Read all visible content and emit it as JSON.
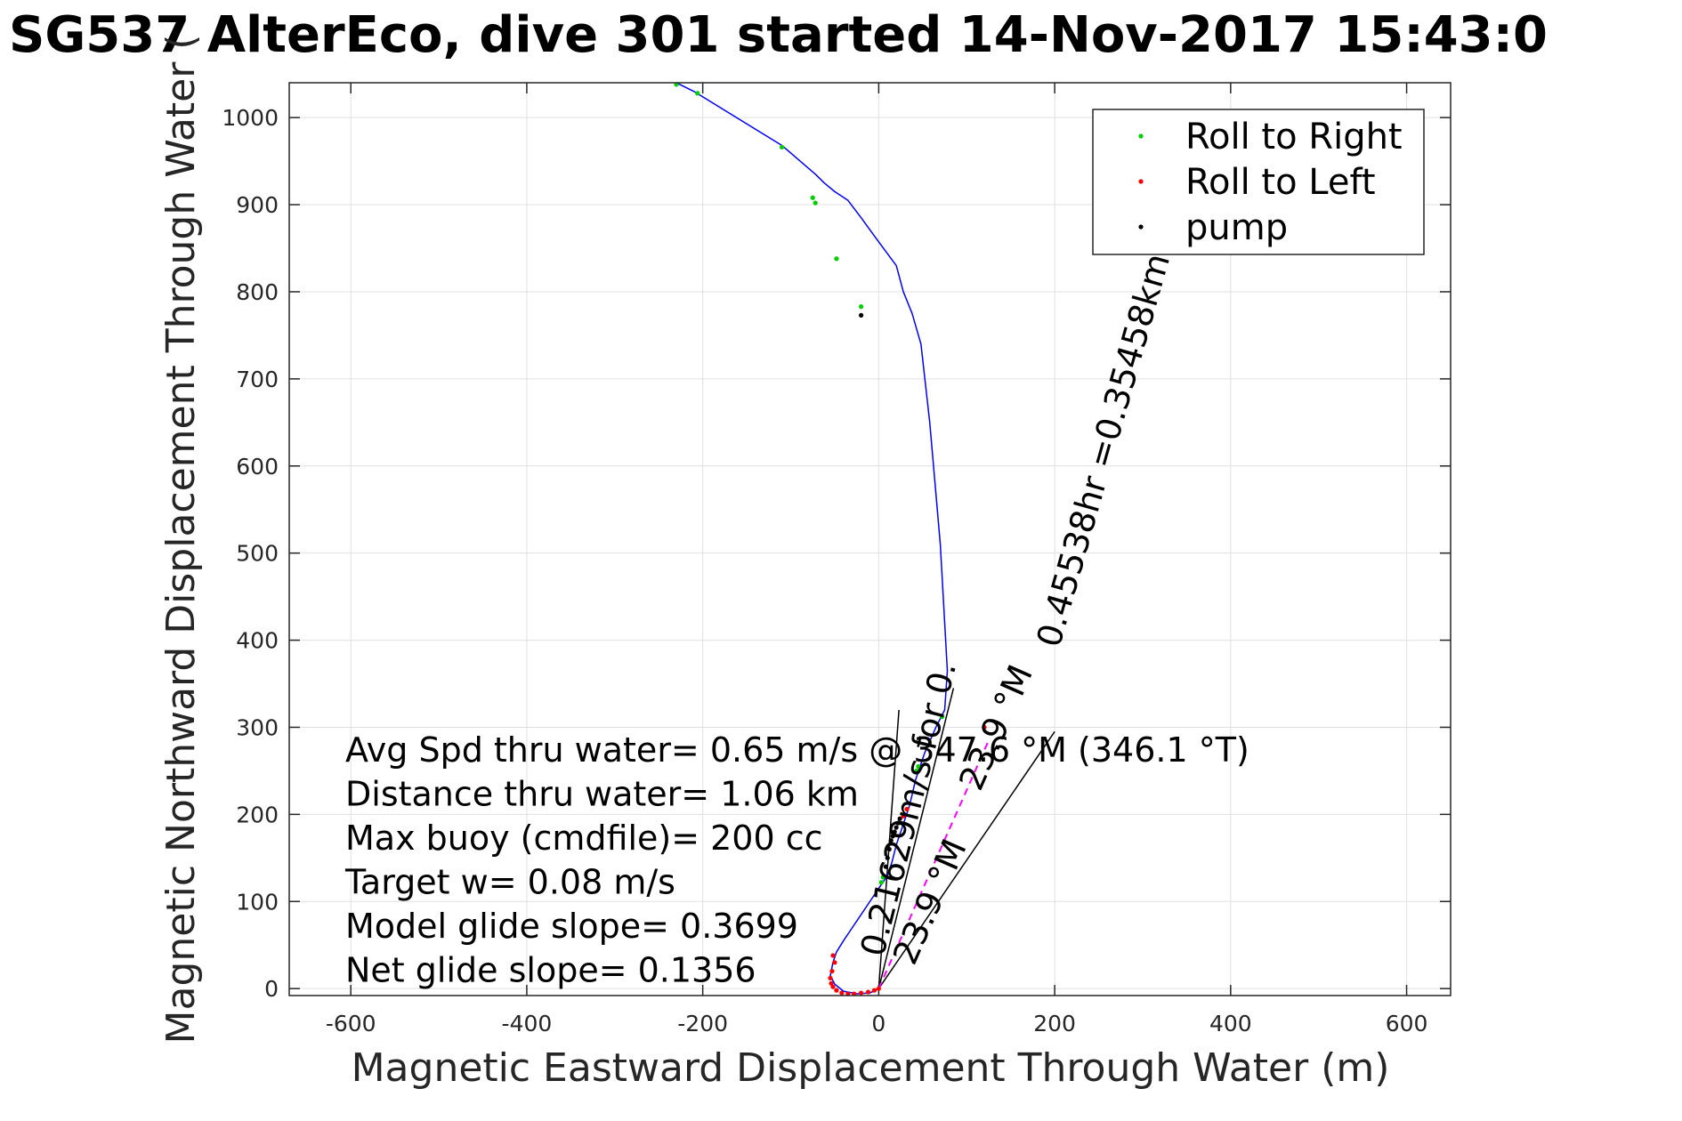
{
  "chart_data": {
    "type": "line",
    "title": "SG537 AlterEco, dive 301 started 14-Nov-2017 15:43:0",
    "xlabel": "Magnetic Eastward Displacement Through Water (m)",
    "ylabel": "Magnetic Northward Displacement Through Water (",
    "xlim": [
      -670,
      650
    ],
    "ylim": [
      -8,
      1040
    ],
    "xticks": [
      -600,
      -400,
      -200,
      0,
      200,
      400,
      600
    ],
    "yticks": [
      0,
      100,
      200,
      300,
      400,
      500,
      600,
      700,
      800,
      900,
      1000
    ],
    "xtick_labels": [
      "-600",
      "-400",
      "-200",
      "0",
      "200",
      "400",
      "600"
    ],
    "ytick_labels": [
      "0",
      "100",
      "200",
      "300",
      "400",
      "500",
      "600",
      "700",
      "800",
      "900",
      "1000"
    ],
    "grid": true,
    "legend_position": "top-right",
    "legend": [
      {
        "label": "Roll to Right",
        "color": "#00d000"
      },
      {
        "label": "Roll to Left",
        "color": "#ff0000"
      },
      {
        "label": "pump",
        "color": "#000000"
      }
    ],
    "series": [
      {
        "style": "line",
        "color": "#0000ff",
        "x": [
          0,
          -10,
          -25,
          -40,
          -50,
          -55,
          -52,
          -48,
          -40,
          -30,
          -20,
          -10,
          0,
          10,
          15,
          20,
          25,
          30,
          35,
          42,
          52,
          65,
          75,
          78,
          70,
          58,
          48,
          38,
          28,
          20,
          -2,
          -20,
          -35,
          -50,
          -62,
          -72,
          -110,
          -210,
          -230
        ],
        "y": [
          0,
          -5,
          -6,
          -3,
          5,
          15,
          30,
          42,
          55,
          70,
          85,
          100,
          115,
          130,
          145,
          165,
          180,
          195,
          210,
          240,
          270,
          300,
          320,
          365,
          510,
          650,
          740,
          775,
          800,
          830,
          860,
          885,
          905,
          915,
          925,
          935,
          968,
          1030,
          1040
        ]
      },
      {
        "name": "Roll to Right",
        "style": "points",
        "color": "#00d000",
        "x": [
          -230,
          -206,
          -110,
          -75,
          -72,
          -48,
          -20,
          72,
          45,
          43,
          5,
          3
        ],
        "y": [
          1038,
          1028,
          966,
          908,
          902,
          838,
          783,
          312,
          255,
          250,
          128,
          122
        ]
      },
      {
        "name": "Roll to Left",
        "style": "points",
        "color": "#ff0000",
        "x": [
          -52,
          -50,
          -53,
          -55,
          -54,
          -52,
          -48,
          -42,
          -35,
          -28,
          -20,
          -12,
          -5,
          0,
          28,
          32,
          120
        ],
        "y": [
          38,
          30,
          20,
          12,
          6,
          2,
          -2,
          -5,
          -6,
          -6,
          -5,
          -4,
          -2,
          0,
          198,
          206,
          300
        ]
      },
      {
        "name": "pump",
        "style": "points",
        "color": "#000000",
        "x": [
          -20,
          8,
          10,
          12,
          14,
          16,
          18,
          20,
          22,
          24
        ],
        "y": [
          773,
          140,
          150,
          160,
          170,
          175,
          180,
          185,
          190,
          195
        ]
      }
    ],
    "vectors": [
      {
        "from": [
          0,
          0
        ],
        "to": [
          85,
          345
        ]
      },
      {
        "from": [
          0,
          0
        ],
        "to": [
          200,
          295
        ]
      },
      {
        "from": [
          0,
          0
        ],
        "to": [
          23,
          320
        ]
      }
    ],
    "dashed_vector": {
      "color": "#ff00ff",
      "from": [
        0,
        0
      ],
      "to": [
        125,
        285
      ]
    },
    "annotations": [
      "Avg Spd thru water=  0.65 m/s @ 347.6 °M (346.1 °T)",
      "Distance thru water=  1.06 km",
      "Max buoy (cmdfile)= 200 cc",
      "Target w= 0.08 m/s",
      "Model glide slope= 0.3699",
      "Net glide slope= 0.1356"
    ],
    "vector_labels": [
      {
        "text": "0.45538hr =0.35458km",
        "anchor": [
          205,
          390
        ],
        "angle": -74.2
      },
      {
        "text": "0.21629m/s for 0.",
        "anchor": [
          5,
          35
        ],
        "angle": -76.0
      },
      {
        "text": "23.9 °M",
        "anchor": [
          40,
          25
        ],
        "angle": -66.3
      },
      {
        "text": "23.9 °M",
        "anchor": [
          115,
          225
        ],
        "angle": -66.3
      }
    ]
  }
}
